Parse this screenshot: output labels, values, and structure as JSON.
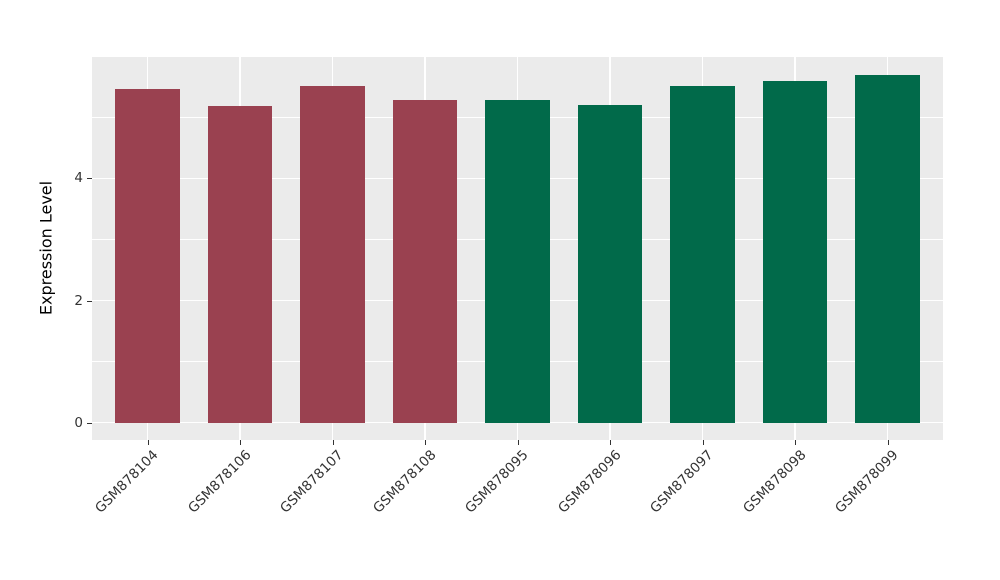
{
  "chart_data": {
    "type": "bar",
    "title": "",
    "xlabel": "",
    "ylabel": "Expression Level",
    "categories": [
      "GSM878104",
      "GSM878106",
      "GSM878107",
      "GSM878108",
      "GSM878095",
      "GSM878096",
      "GSM878097",
      "GSM878098",
      "GSM878099"
    ],
    "values": [
      5.46,
      5.18,
      5.51,
      5.29,
      5.29,
      5.21,
      5.51,
      5.6,
      5.7
    ],
    "bar_colors": [
      "#9A4150",
      "#9A4150",
      "#9A4150",
      "#9A4150",
      "#016A4A",
      "#016A4A",
      "#016A4A",
      "#016A4A",
      "#016A4A"
    ],
    "group_colors": {
      "red_group": "#9A4150",
      "green_group": "#016A4A"
    },
    "yticks": [
      0,
      2,
      4
    ],
    "yticks_minor": [
      1,
      3,
      5
    ],
    "ylim": [
      -0.285,
      5.99
    ],
    "bar_width_fraction": 0.7,
    "x_tick_rotation_deg": 45,
    "grid": "on",
    "legend": "none",
    "panel_bg": "#EBEBEB",
    "figure_bg": "#FFFFFF",
    "grid_color": "#FFFFFF",
    "tick_mark_color": "#333333",
    "tick_label_color": "#333333",
    "axis_title_color": "#000000"
  }
}
